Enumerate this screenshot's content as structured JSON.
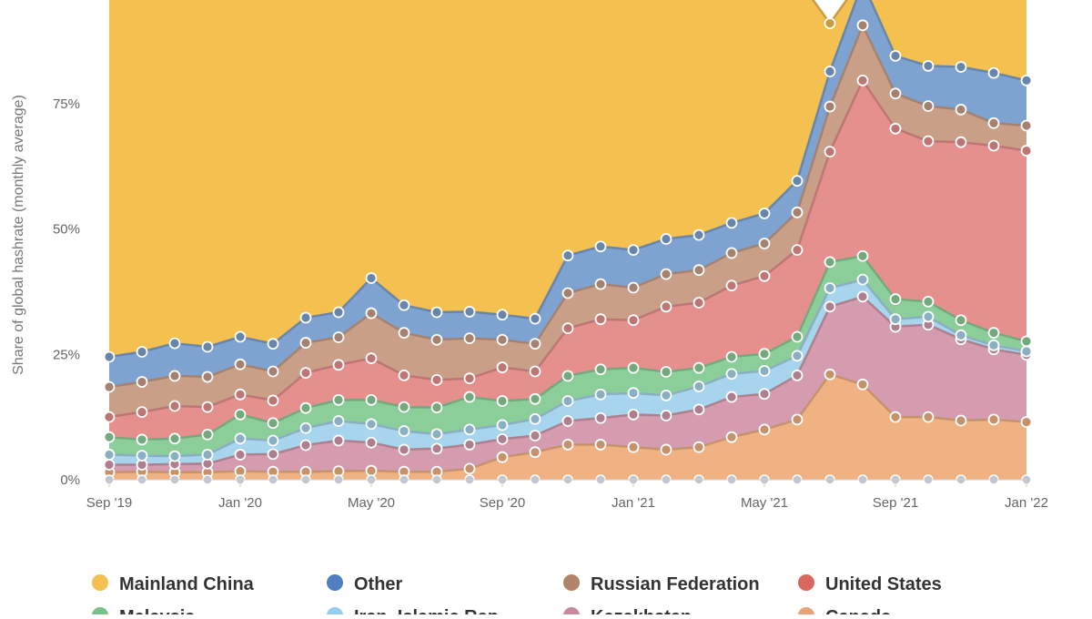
{
  "chart_data": {
    "type": "area",
    "stacked": true,
    "title": "",
    "xlabel": "",
    "ylabel": "Share of global hashrate (monthly average)",
    "x": [
      "Sep '19",
      "Oct '19",
      "Nov '19",
      "Dec '19",
      "Jan '20",
      "Feb '20",
      "Mar '20",
      "Apr '20",
      "May '20",
      "Jun '20",
      "Jul '20",
      "Aug '20",
      "Sep '20",
      "Oct '20",
      "Nov '20",
      "Dec '20",
      "Jan '21",
      "Feb '21",
      "Mar '21",
      "Apr '21",
      "May '21",
      "Jun '21",
      "Jul '21",
      "Aug '21",
      "Sep '21",
      "Oct '21",
      "Nov '21",
      "Dec '21",
      "Jan '22"
    ],
    "x_tick_labels": [
      "Sep '19",
      "Jan '20",
      "May '20",
      "Sep '20",
      "Jan '21",
      "May '21",
      "Sep '21",
      "Jan '22"
    ],
    "y_tick_labels": [
      "0%",
      "25%",
      "50%",
      "75%"
    ],
    "ylim": [
      0,
      100
    ],
    "series": [
      {
        "name": "Canada",
        "color": "#f0b282",
        "values": [
          1.5,
          1.6,
          1.5,
          1.5,
          1.7,
          1.6,
          1.6,
          1.7,
          1.8,
          1.6,
          1.6,
          2.2,
          4.5,
          5.5,
          7.0,
          7.0,
          6.5,
          6.0,
          6.5,
          8.5,
          10.0,
          12.0,
          21.0,
          19.0,
          12.5,
          12.5,
          11.8,
          12.0,
          11.5
        ]
      },
      {
        "name": "Kazakhstan",
        "color": "#d49cae",
        "values": [
          1.5,
          1.4,
          1.6,
          1.7,
          3.3,
          3.5,
          5.3,
          6.1,
          5.6,
          4.4,
          4.6,
          4.8,
          3.6,
          3.3,
          4.7,
          5.3,
          6.5,
          6.8,
          7.5,
          8.0,
          7.1,
          8.8,
          13.5,
          17.5,
          18.0,
          18.4,
          16.2,
          14.0,
          13.4
        ]
      },
      {
        "name": "Iran, Islamic Rep.",
        "color": "#a8d5ee",
        "values": [
          2.0,
          1.8,
          1.6,
          1.8,
          3.2,
          2.7,
          3.4,
          3.9,
          3.7,
          3.7,
          2.9,
          3.0,
          2.8,
          3.3,
          4.0,
          4.7,
          4.3,
          4.0,
          4.6,
          4.6,
          4.6,
          3.9,
          3.7,
          3.4,
          1.5,
          1.6,
          0.8,
          0.8,
          0.7
        ]
      },
      {
        "name": "Malaysia",
        "color": "#8cce99",
        "values": [
          3.5,
          3.2,
          3.5,
          4.0,
          4.8,
          3.5,
          4.0,
          4.2,
          4.8,
          4.8,
          5.3,
          6.5,
          4.8,
          4.0,
          5.0,
          5.0,
          5.0,
          4.7,
          3.7,
          3.4,
          3.4,
          3.8,
          5.2,
          4.7,
          4.0,
          3.0,
          3.0,
          2.5,
          2.0
        ]
      },
      {
        "name": "United States",
        "color": "#e6908e",
        "values": [
          4.0,
          5.5,
          6.5,
          5.5,
          4.0,
          4.5,
          7.0,
          7.0,
          8.3,
          6.3,
          5.5,
          3.7,
          6.7,
          5.5,
          9.5,
          10.0,
          9.5,
          13.0,
          13.0,
          14.2,
          15.5,
          17.3,
          22.0,
          35.0,
          34.0,
          32.0,
          35.5,
          37.3,
          38.0
        ]
      },
      {
        "name": "Russian Federation",
        "color": "#c99f88",
        "values": [
          6.0,
          6.0,
          6.0,
          6.0,
          6.0,
          5.8,
          6.0,
          5.5,
          9.0,
          8.5,
          8.0,
          8.0,
          5.5,
          5.5,
          7.0,
          7.0,
          6.5,
          6.5,
          6.5,
          6.5,
          6.5,
          7.5,
          9.0,
          11.0,
          7.0,
          7.0,
          6.5,
          4.5,
          5.0
        ]
      },
      {
        "name": "Other",
        "color": "#7fa3d1",
        "values": [
          6.0,
          6.0,
          6.5,
          6.0,
          5.5,
          5.5,
          5.0,
          5.0,
          7.0,
          5.5,
          5.5,
          5.3,
          5.0,
          5.0,
          7.5,
          7.5,
          7.5,
          7.0,
          7.0,
          6.0,
          6.0,
          6.3,
          7.0,
          8.5,
          7.5,
          8.0,
          8.5,
          10.0,
          9.0
        ]
      },
      {
        "name": "Mainland China",
        "color": "#f4c04f",
        "values": [
          75.5,
          74.5,
          72.8,
          73.5,
          71.5,
          72.9,
          67.7,
          66.6,
          59.8,
          65.2,
          66.6,
          66.5,
          66.9,
          67.9,
          55.3,
          53.5,
          54.2,
          52.0,
          51.2,
          48.8,
          46.9,
          40.4,
          9.6,
          1.0,
          15.5,
          17.5,
          17.7,
          18.9,
          20.4
        ]
      }
    ]
  },
  "axes": {
    "y_title": "Share of global hashrate (monthly average)"
  },
  "legend": {
    "items": [
      {
        "label": "Mainland China",
        "color": "#f4c04f"
      },
      {
        "label": "Other",
        "color": "#4f7fc0"
      },
      {
        "label": "Russian Federation",
        "color": "#b08468"
      },
      {
        "label": "United States",
        "color": "#d9665f"
      },
      {
        "label": "Malaysia",
        "color": "#78c189"
      },
      {
        "label": "Iran, Islamic Rep.",
        "color": "#96cdef"
      },
      {
        "label": "Kazakhstan",
        "color": "#c98aa1"
      },
      {
        "label": "Canada",
        "color": "#e8a478"
      }
    ]
  }
}
